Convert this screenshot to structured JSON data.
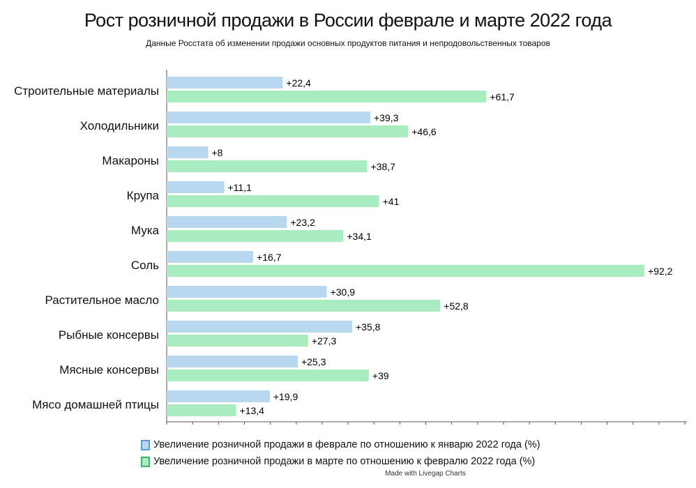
{
  "chart_data": {
    "type": "bar",
    "orientation": "horizontal",
    "title": "Рост розничной продажи в России феврале и марте 2022 года",
    "subtitle": "Данные Росстата об изменении продажи основных продуктов питания и непродовольственных товаров",
    "categories": [
      "Строительные материалы",
      "Холодильники",
      "Макароны",
      "Крупа",
      "Мука",
      "Соль",
      "Растительное масло",
      "Рыбные консервы",
      "Мясные консервы",
      "Мясо домашней птицы"
    ],
    "series": [
      {
        "name": "Увеличение розничной продажи в феврале по отношению к январю 2022 года (%)",
        "color": "#b8d8f0",
        "border": "#5b9bd5",
        "values": [
          22.4,
          39.3,
          8,
          11.1,
          23.2,
          16.7,
          30.9,
          35.8,
          25.3,
          19.9
        ],
        "labels": [
          "+22,4",
          "+39,3",
          "+8",
          "+11,1",
          "+23,2",
          "+16,7",
          "+30,9",
          "+35,8",
          "+25,3",
          "+19,9"
        ]
      },
      {
        "name": "Увеличение розничной продажи в марте по отношению к февралю 2022 года (%)",
        "color": "#a8ecc0",
        "border": "#3cb371",
        "values": [
          61.7,
          46.6,
          38.7,
          41,
          34.1,
          92.2,
          52.8,
          27.3,
          39,
          13.4
        ],
        "labels": [
          "+61,7",
          "+46,6",
          "+38,7",
          "+41",
          "+34,1",
          "+92,2",
          "+52,8",
          "+27,3",
          "+39",
          "+13,4"
        ]
      }
    ],
    "xlim": [
      0,
      100
    ],
    "grid": false,
    "legend": "bottom"
  },
  "credit": "Made with Livegap Charts"
}
